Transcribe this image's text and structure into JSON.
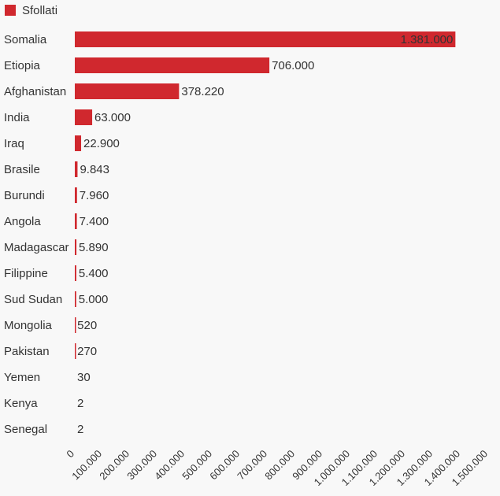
{
  "chart_data": {
    "type": "bar",
    "orientation": "horizontal",
    "legend": {
      "label": "Sfollati",
      "position": "top-left"
    },
    "color": "#d0282e",
    "categories": [
      "Somalia",
      "Etiopia",
      "Afghanistan",
      "India",
      "Iraq",
      "Brasile",
      "Burundi",
      "Angola",
      "Madagascar",
      "Filippine",
      "Sud Sudan",
      "Mongolia",
      "Pakistan",
      "Yemen",
      "Kenya",
      "Senegal"
    ],
    "values": [
      1381000,
      706000,
      378220,
      63000,
      22900,
      9843,
      7960,
      7400,
      5890,
      5400,
      5000,
      520,
      270,
      30,
      2,
      2
    ],
    "value_labels": [
      "1.381.000",
      "706.000",
      "378.220",
      "63.000",
      "22.900",
      "9.843",
      "7.960",
      "7.400",
      "5.890",
      "5.400",
      "5.000",
      "520",
      "270",
      "30",
      "2",
      "2"
    ],
    "xlim": [
      0,
      1500000
    ],
    "x_ticks": [
      0,
      100000,
      200000,
      300000,
      400000,
      500000,
      600000,
      700000,
      800000,
      900000,
      1000000,
      1100000,
      1200000,
      1300000,
      1400000,
      1500000
    ],
    "x_tick_labels": [
      "0",
      "100.000",
      "200.000",
      "300.000",
      "400.000",
      "500.000",
      "600.000",
      "700.000",
      "800.000",
      "900.000",
      "1.000.000",
      "1.100.000",
      "1.200.000",
      "1.300.000",
      "1.400.000",
      "1.500.000"
    ],
    "grid": false
  }
}
